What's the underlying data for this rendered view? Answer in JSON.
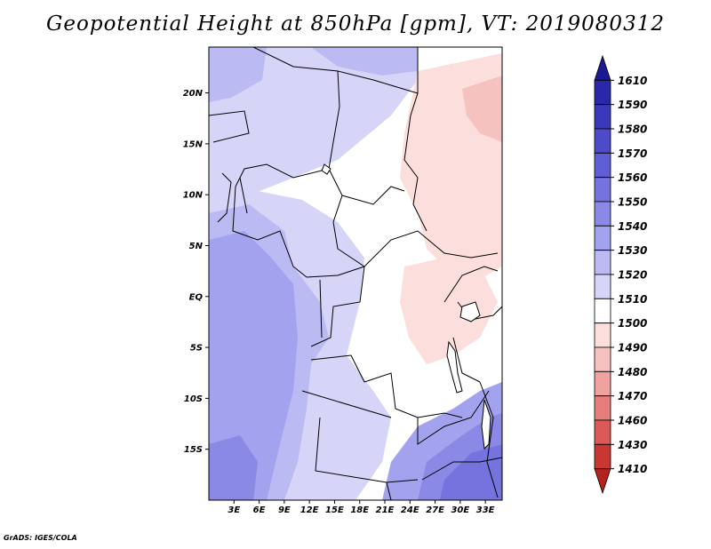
{
  "title": "Geopotential Height at 850hPa [gpm], VT: 2019080312",
  "credit": "GrADS: IGES/COLA",
  "y_ticks": [
    "20N",
    "15N",
    "10N",
    "5N",
    "EQ",
    "5S",
    "10S",
    "15S"
  ],
  "x_ticks": [
    "3E",
    "6E",
    "9E",
    "12E",
    "15E",
    "18E",
    "21E",
    "24E",
    "27E",
    "30E",
    "33E"
  ],
  "colorbar": {
    "labels": [
      "1610",
      "1590",
      "1580",
      "1570",
      "1560",
      "1550",
      "1540",
      "1530",
      "1520",
      "1510",
      "1500",
      "1490",
      "1480",
      "1470",
      "1460",
      "1430",
      "1410"
    ],
    "colors": [
      "#1c1a93",
      "#2a28a8",
      "#3b39bb",
      "#4d4bc9",
      "#605ed5",
      "#7573de",
      "#8a89e6",
      "#a3a2ee",
      "#bbbaf3",
      "#d6d5f8",
      "#ffffff",
      "#fcdedd",
      "#f6c2c0",
      "#efa2a0",
      "#e67f7c",
      "#db5a56",
      "#c83732",
      "#b5221e"
    ]
  },
  "map": {
    "lon_range": [
      0,
      35
    ],
    "lat_range": [
      -20,
      24.5
    ]
  }
}
